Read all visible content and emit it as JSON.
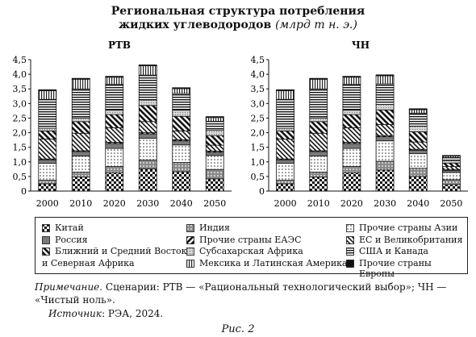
{
  "title_line1": "Региональная структура потребления",
  "title_line2": "жидких углеводородов",
  "title_unit": "(млрд т н. э.)",
  "legend_order": [
    "china",
    "india",
    "other_asia",
    "russia",
    "opec_other",
    "eu_uk",
    "mideast",
    "ssafrica",
    "usa_canada",
    "latam",
    "other_europe"
  ],
  "regions": {
    "china": {
      "name": "Китай",
      "pattern": "checker"
    },
    "india": {
      "name": "Индия",
      "pattern": "grey-dots"
    },
    "other_asia": {
      "name": "Прочие страны Азии",
      "pattern": "dots"
    },
    "russia": {
      "name": "Россия",
      "pattern": "grey"
    },
    "opec_other": {
      "name": "Прочие страны ЕАЭС",
      "pattern": "diag-bold"
    },
    "eu_uk": {
      "name": "ЕС и Великобритания",
      "pattern": "diag-thin"
    },
    "mideast": {
      "name": "Ближний и Средний Восток и Северная Африка",
      "name_line1": "Ближний и Средний Восток",
      "name_line2": "и Северная Африка",
      "pattern": "diag-back"
    },
    "ssafrica": {
      "name": "Субсахарская Африка",
      "pattern": "light-dots"
    },
    "usa_canada": {
      "name": "США и Канада",
      "pattern": "hlines"
    },
    "latam": {
      "name": "Мексика и Латинская Америка",
      "pattern": "vlines"
    },
    "other_europe": {
      "name": "Прочие страны Европы",
      "pattern": "black"
    }
  },
  "chart_data": [
    {
      "type": "bar",
      "stacked": true,
      "title": "РТВ",
      "categories": [
        "2000",
        "2010",
        "2020",
        "2030",
        "2040",
        "2050"
      ],
      "ylim": [
        0,
        4.5
      ],
      "yticks": [
        "0",
        "0,5",
        "1,0",
        "1,5",
        "2,0",
        "2,5",
        "3,0",
        "3,5",
        "4,0",
        "4,5"
      ],
      "series": [
        {
          "key": "china",
          "values": [
            0.25,
            0.48,
            0.62,
            0.76,
            0.66,
            0.42
          ]
        },
        {
          "key": "india",
          "values": [
            0.12,
            0.17,
            0.22,
            0.3,
            0.32,
            0.32
          ]
        },
        {
          "key": "other_asia",
          "values": [
            0.58,
            0.55,
            0.62,
            0.75,
            0.6,
            0.48
          ]
        },
        {
          "key": "russia",
          "values": [
            0.12,
            0.15,
            0.17,
            0.15,
            0.14,
            0.11
          ]
        },
        {
          "key": "opec_other",
          "values": [
            0.03,
            0.03,
            0.04,
            0.04,
            0.04,
            0.04
          ]
        },
        {
          "key": "eu_uk",
          "values": [
            0.68,
            0.6,
            0.5,
            0.38,
            0.3,
            0.2
          ]
        },
        {
          "key": "mideast",
          "values": [
            0.28,
            0.4,
            0.45,
            0.55,
            0.5,
            0.33
          ]
        },
        {
          "key": "ssafrica",
          "values": [
            0.09,
            0.12,
            0.15,
            0.19,
            0.21,
            0.18
          ]
        },
        {
          "key": "usa_canada",
          "values": [
            0.99,
            1.0,
            0.88,
            0.85,
            0.57,
            0.31
          ]
        },
        {
          "key": "latam",
          "values": [
            0.3,
            0.33,
            0.25,
            0.32,
            0.17,
            0.13
          ]
        },
        {
          "key": "other_europe",
          "values": [
            0.03,
            0.03,
            0.03,
            0.03,
            0.03,
            0.03
          ]
        }
      ]
    },
    {
      "type": "bar",
      "stacked": true,
      "title": "ЧН",
      "categories": [
        "2000",
        "2010",
        "2020",
        "2030",
        "2040",
        "2050"
      ],
      "ylim": [
        0,
        4.5
      ],
      "yticks": [
        "0",
        "0,5",
        "1,0",
        "1,5",
        "2,0",
        "2,5",
        "3,0",
        "3,5",
        "4,0",
        "4,5"
      ],
      "series": [
        {
          "key": "china",
          "values": [
            0.25,
            0.48,
            0.62,
            0.72,
            0.5,
            0.22
          ]
        },
        {
          "key": "india",
          "values": [
            0.12,
            0.17,
            0.22,
            0.3,
            0.28,
            0.17
          ]
        },
        {
          "key": "other_asia",
          "values": [
            0.58,
            0.55,
            0.62,
            0.7,
            0.5,
            0.25
          ]
        },
        {
          "key": "russia",
          "values": [
            0.12,
            0.15,
            0.17,
            0.14,
            0.12,
            0.07
          ]
        },
        {
          "key": "opec_other",
          "values": [
            0.03,
            0.03,
            0.04,
            0.04,
            0.03,
            0.03
          ]
        },
        {
          "key": "eu_uk",
          "values": [
            0.68,
            0.6,
            0.5,
            0.38,
            0.25,
            0.1
          ]
        },
        {
          "key": "mideast",
          "values": [
            0.28,
            0.4,
            0.45,
            0.5,
            0.35,
            0.12
          ]
        },
        {
          "key": "ssafrica",
          "values": [
            0.09,
            0.12,
            0.15,
            0.19,
            0.19,
            0.09
          ]
        },
        {
          "key": "usa_canada",
          "values": [
            0.99,
            1.0,
            0.88,
            0.7,
            0.45,
            0.1
          ]
        },
        {
          "key": "latam",
          "values": [
            0.3,
            0.33,
            0.25,
            0.28,
            0.12,
            0.05
          ]
        },
        {
          "key": "other_europe",
          "values": [
            0.03,
            0.03,
            0.03,
            0.03,
            0.03,
            0.02
          ]
        }
      ]
    }
  ],
  "note_label": "Примечание",
  "note_text": ". Сценарии: РТВ — «Рациональный технологический выбор»; ЧН — «Чистый ноль».",
  "source_label": "Источник",
  "source_text": ": РЭА, 2024.",
  "caption": "Рис. 2"
}
